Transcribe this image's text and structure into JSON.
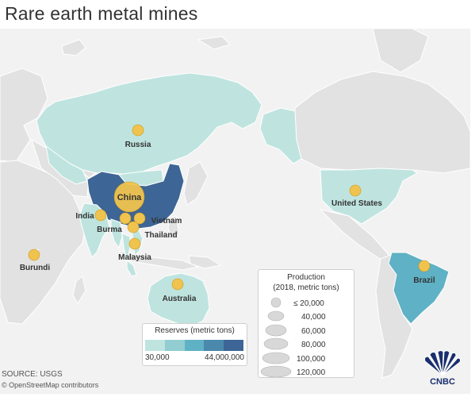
{
  "title": "Rare earth metal mines",
  "colors": {
    "ocean": "#f2f2f2",
    "land": "#e2e2e2",
    "border": "#ffffff",
    "mine": "#f0c34e",
    "mine_stroke": "#c99a1e",
    "reserves_scale": [
      "#bfe4df",
      "#92cdd1",
      "#5fb1c5",
      "#4a89ac",
      "#3d6595"
    ]
  },
  "mines": [
    {
      "id": "china",
      "label": "China",
      "production_metric_tons": 120000
    },
    {
      "id": "russia",
      "label": "Russia",
      "production_metric_tons": 2600
    },
    {
      "id": "united-states",
      "label": "United States",
      "production_metric_tons": 15000
    },
    {
      "id": "brazil",
      "label": "Brazil",
      "production_metric_tons": 1000
    },
    {
      "id": "australia",
      "label": "Australia",
      "production_metric_tons": 20000
    },
    {
      "id": "india",
      "label": "India",
      "production_metric_tons": 1800
    },
    {
      "id": "burma",
      "label": "Burma",
      "production_metric_tons": 5000
    },
    {
      "id": "vietnam",
      "label": "Vietnam",
      "production_metric_tons": 400
    },
    {
      "id": "thailand",
      "label": "Thailand",
      "production_metric_tons": 1000
    },
    {
      "id": "malaysia",
      "label": "Malaysia",
      "production_metric_tons": 200
    },
    {
      "id": "burundi",
      "label": "Burundi",
      "production_metric_tons": 1000
    }
  ],
  "reserves_legend": {
    "title": "Reserves (metric tons)",
    "min_label": "30,000",
    "max_label": "44,000,000"
  },
  "production_legend": {
    "title_line1": "Production",
    "title_line2": "(2018, metric tons)",
    "labels": [
      "≤ 20,000",
      "40,000",
      "60,000",
      "80,000",
      "100,000",
      "120,000"
    ]
  },
  "source": "SOURCE: USGS",
  "credit": "© OpenStreetMap contributors",
  "logo": {
    "text": "CNBC",
    "icon": "peacock-icon"
  }
}
